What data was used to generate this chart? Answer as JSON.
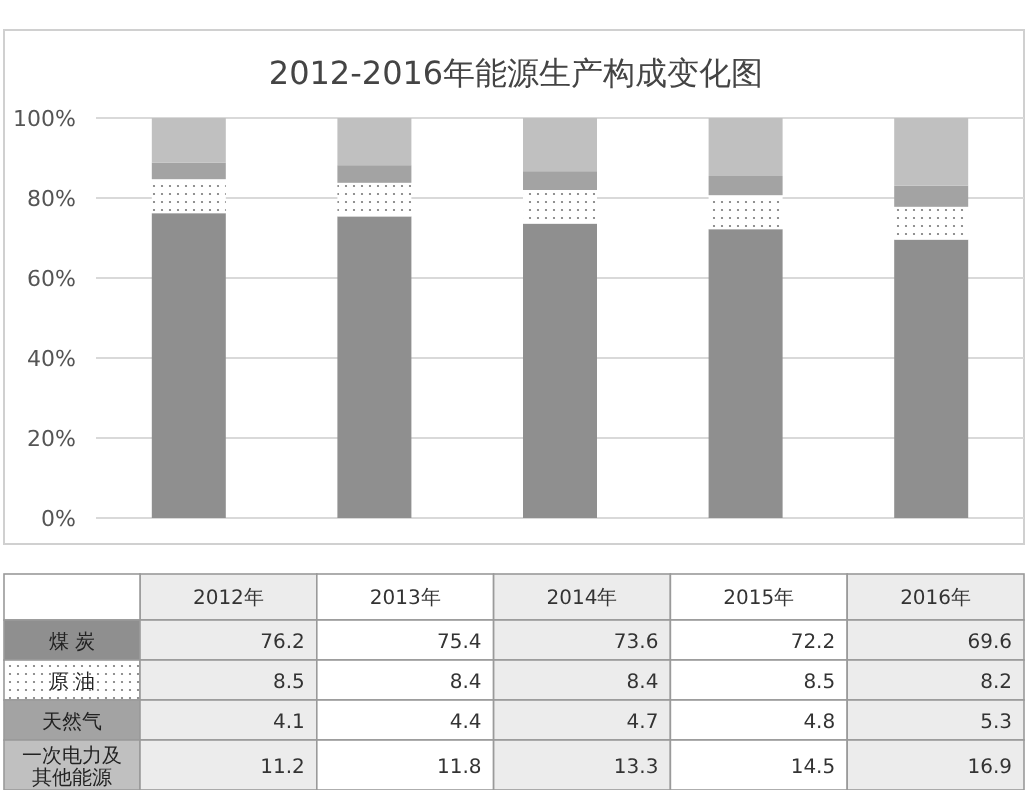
{
  "chart_data": {
    "type": "bar",
    "stacked": true,
    "title": "2012-2016年能源生产构成变化图",
    "categories": [
      "2012年",
      "2013年",
      "2014年",
      "2015年",
      "2016年"
    ],
    "series": [
      {
        "name": "煤 炭",
        "color": "#8f8f8f",
        "values": [
          76.2,
          75.4,
          73.6,
          72.2,
          69.6
        ]
      },
      {
        "name": "原 油",
        "color": "#ffffff",
        "values": [
          8.5,
          8.4,
          8.4,
          8.5,
          8.2
        ]
      },
      {
        "name": "天然气",
        "color": "#a3a3a3",
        "values": [
          4.1,
          4.4,
          4.7,
          4.8,
          5.3
        ]
      },
      {
        "name": "一次电力及其他能源",
        "color": "#c0c0c0",
        "values": [
          11.2,
          11.8,
          13.3,
          14.5,
          16.9
        ]
      }
    ],
    "ylim": [
      0,
      100
    ],
    "yticks": [
      {
        "value": 0,
        "label": "0%"
      },
      {
        "value": 20,
        "label": "20%"
      },
      {
        "value": 40,
        "label": "40%"
      },
      {
        "value": 60,
        "label": "60%"
      },
      {
        "value": 80,
        "label": "80%"
      },
      {
        "value": 100,
        "label": "100%"
      }
    ],
    "grid": "y",
    "data_labels": true
  }
}
